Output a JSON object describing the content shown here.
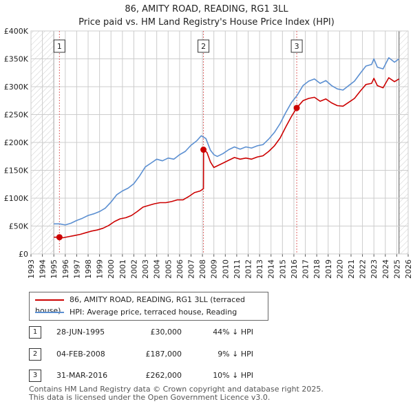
{
  "chart_data": {
    "type": "line",
    "title": "86, AMITY ROAD, READING, RG1 3LL",
    "subtitle": "Price paid vs. HM Land Registry's House Price Index (HPI)",
    "xlabel": "",
    "ylabel": "",
    "xlim": [
      1993,
      2026
    ],
    "ylim": [
      0,
      400000
    ],
    "x_ticks": [
      1993,
      1994,
      1995,
      1996,
      1997,
      1998,
      1999,
      2000,
      2001,
      2002,
      2003,
      2004,
      2005,
      2006,
      2007,
      2008,
      2009,
      2010,
      2011,
      2012,
      2013,
      2014,
      2015,
      2016,
      2017,
      2018,
      2019,
      2020,
      2021,
      2022,
      2023,
      2024,
      2025,
      2026
    ],
    "y_ticks": [
      {
        "value": 0,
        "label": "£0"
      },
      {
        "value": 50000,
        "label": "£50K"
      },
      {
        "value": 100000,
        "label": "£100K"
      },
      {
        "value": 150000,
        "label": "£150K"
      },
      {
        "value": 200000,
        "label": "£200K"
      },
      {
        "value": 250000,
        "label": "£250K"
      },
      {
        "value": 300000,
        "label": "£300K"
      },
      {
        "value": 350000,
        "label": "£350K"
      },
      {
        "value": 400000,
        "label": "£400K"
      }
    ],
    "grid": true,
    "hatched_ranges": [
      [
        1993,
        1995.0
      ],
      [
        2025.2,
        2026
      ]
    ],
    "series": [
      {
        "name": "HPI: Average price, terraced house, Reading",
        "color": "#5b8fd1",
        "x": [
          1995.0,
          1995.5,
          1996.0,
          1996.5,
          1997.0,
          1997.5,
          1998.0,
          1998.5,
          1999.0,
          1999.5,
          2000.0,
          2000.5,
          2001.0,
          2001.5,
          2002.0,
          2002.5,
          2003.0,
          2003.5,
          2004.0,
          2004.5,
          2005.0,
          2005.5,
          2006.0,
          2006.5,
          2007.0,
          2007.5,
          2007.9,
          2008.3,
          2008.7,
          2009.0,
          2009.3,
          2009.8,
          2010.3,
          2010.8,
          2011.3,
          2011.8,
          2012.3,
          2012.8,
          2013.3,
          2013.8,
          2014.3,
          2014.8,
          2015.3,
          2015.8,
          2016.3,
          2016.8,
          2017.3,
          2017.8,
          2018.3,
          2018.8,
          2019.3,
          2019.8,
          2020.3,
          2020.8,
          2021.3,
          2021.8,
          2022.3,
          2022.8,
          2023.0,
          2023.3,
          2023.8,
          2024.3,
          2024.8,
          2025.2
        ],
        "values": [
          54000,
          54000,
          52000,
          55000,
          60000,
          64000,
          69000,
          72000,
          76000,
          82000,
          93000,
          106000,
          113000,
          118000,
          126000,
          140000,
          156000,
          163000,
          170000,
          167000,
          172000,
          170000,
          178000,
          184000,
          195000,
          203000,
          212000,
          207000,
          186000,
          178000,
          175000,
          180000,
          187000,
          192000,
          188000,
          192000,
          190000,
          194000,
          196000,
          206000,
          218000,
          234000,
          254000,
          272000,
          285000,
          302000,
          310000,
          314000,
          306000,
          311000,
          302000,
          296000,
          294000,
          302000,
          310000,
          324000,
          337000,
          340000,
          350000,
          335000,
          332000,
          352000,
          344000,
          350000
        ]
      },
      {
        "name": "86, AMITY ROAD, READING, RG1 3LL (terraced house)",
        "color": "#cc0000",
        "x": [
          1995.0,
          1995.49,
          1995.8,
          1996.3,
          1996.8,
          1997.3,
          1997.8,
          1998.3,
          1998.8,
          1999.3,
          1999.8,
          2000.3,
          2000.8,
          2001.3,
          2001.8,
          2002.3,
          2002.8,
          2003.3,
          2003.8,
          2004.3,
          2004.8,
          2005.3,
          2005.8,
          2006.3,
          2006.8,
          2007.3,
          2007.8,
          2008.09,
          2008.1,
          2008.4,
          2008.7,
          2009.0,
          2009.3,
          2009.8,
          2010.3,
          2010.8,
          2011.3,
          2011.8,
          2012.3,
          2012.8,
          2013.3,
          2013.8,
          2014.3,
          2014.8,
          2015.3,
          2015.8,
          2016.25,
          2016.8,
          2017.3,
          2017.8,
          2018.3,
          2018.8,
          2019.3,
          2019.8,
          2020.3,
          2020.8,
          2021.3,
          2021.8,
          2022.3,
          2022.8,
          2023.0,
          2023.3,
          2023.8,
          2024.3,
          2024.8,
          2025.2
        ],
        "values": [
          30000,
          30000,
          29000,
          31000,
          33000,
          35000,
          38000,
          41000,
          43000,
          46000,
          51000,
          58000,
          63000,
          65000,
          69000,
          76000,
          84000,
          87000,
          90000,
          92000,
          92000,
          94000,
          97000,
          97000,
          103000,
          110000,
          113000,
          117000,
          187000,
          182000,
          165000,
          155000,
          158000,
          163000,
          168000,
          173000,
          170000,
          172000,
          170000,
          174000,
          176000,
          184000,
          194000,
          208000,
          228000,
          247000,
          262000,
          275000,
          279000,
          281000,
          274000,
          278000,
          271000,
          266000,
          265000,
          272000,
          279000,
          292000,
          304000,
          306000,
          315000,
          302000,
          298000,
          316000,
          309000,
          314000
        ]
      }
    ],
    "sale_markers": [
      {
        "label": "1",
        "x": 1995.49,
        "value": 30000
      },
      {
        "label": "2",
        "x": 2008.09,
        "value": 187000
      },
      {
        "label": "3",
        "x": 2016.25,
        "value": 262000
      }
    ]
  },
  "legend": [
    {
      "label": "86, AMITY ROAD, READING, RG1 3LL (terraced house)",
      "color": "#cc0000"
    },
    {
      "label": "HPI: Average price, terraced house, Reading",
      "color": "#5b8fd1"
    }
  ],
  "sales": [
    {
      "num": "1",
      "date": "28-JUN-1995",
      "price": "£30,000",
      "hpi": "44% ↓ HPI"
    },
    {
      "num": "2",
      "date": "04-FEB-2008",
      "price": "£187,000",
      "hpi": "9% ↓ HPI"
    },
    {
      "num": "3",
      "date": "31-MAR-2016",
      "price": "£262,000",
      "hpi": "10% ↓ HPI"
    }
  ],
  "footer": {
    "line1": "Contains HM Land Registry data © Crown copyright and database right 2025.",
    "line2": "This data is licensed under the Open Government Licence v3.0."
  }
}
